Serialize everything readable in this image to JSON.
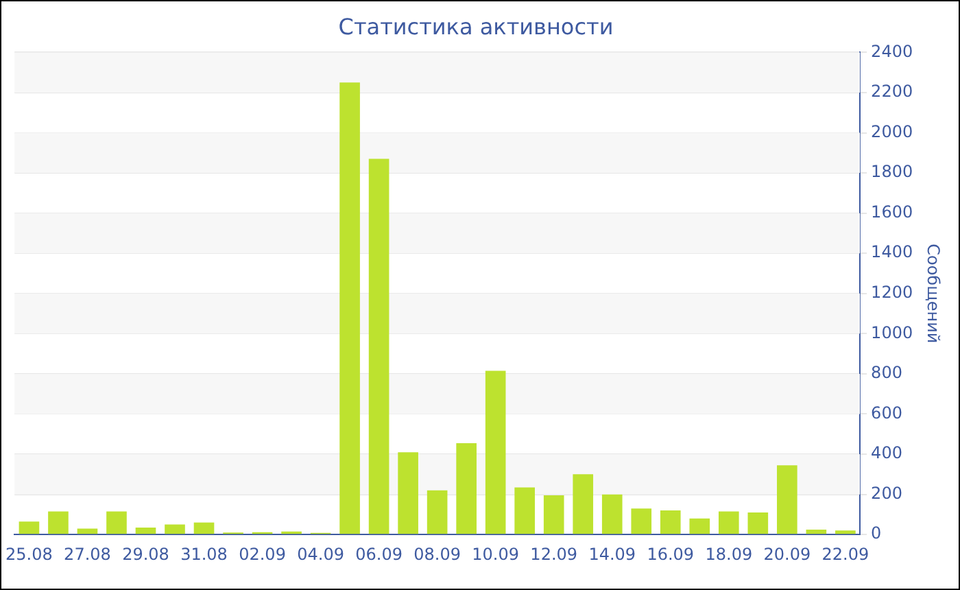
{
  "chart_data": {
    "type": "bar",
    "title": "Статистика активности",
    "ylabel": "Сообщений",
    "categories": [
      "25.08",
      null,
      "27.08",
      null,
      "29.08",
      null,
      "31.08",
      null,
      "02.09",
      null,
      "04.09",
      null,
      "06.09",
      null,
      "08.09",
      null,
      "10.09",
      null,
      "12.09",
      null,
      "14.09",
      null,
      "16.09",
      null,
      "18.09",
      null,
      "20.09",
      null,
      "22.09"
    ],
    "values": [
      65,
      115,
      30,
      115,
      35,
      50,
      60,
      10,
      12,
      15,
      8,
      2250,
      1870,
      410,
      220,
      455,
      815,
      235,
      195,
      300,
      200,
      130,
      120,
      80,
      115,
      110,
      345,
      25,
      20
    ],
    "color": "#bde22f",
    "ylim": [
      0,
      2400
    ],
    "yticks": [
      0,
      200,
      400,
      600,
      800,
      1000,
      1200,
      1400,
      1600,
      1800,
      2000,
      2200,
      2400
    ],
    "grid": "y"
  }
}
